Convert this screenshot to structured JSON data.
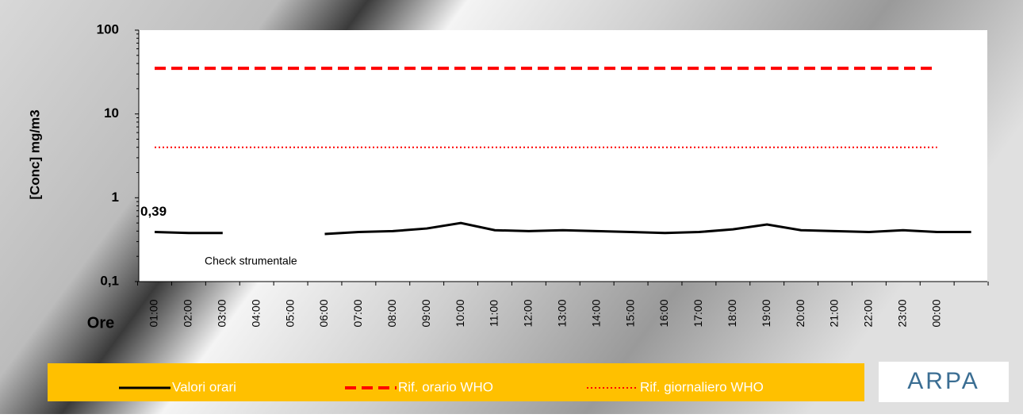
{
  "chart_data": {
    "type": "line",
    "y_label": "[Conc] mg/m3",
    "x_label": "Ore",
    "annotation": "Check strumentale",
    "logo": "ARPA",
    "log_scale": true,
    "categories": [
      "01:00",
      "02:00",
      "03:00",
      "04:00",
      "05:00",
      "06:00",
      "07:00",
      "08:00",
      "09:00",
      "10:00",
      "11:00",
      "12:00",
      "13:00",
      "14:00",
      "15:00",
      "16:00",
      "17:00",
      "18:00",
      "19:00",
      "20:00",
      "21:00",
      "22:00",
      "23:00",
      "00:00",
      null
    ],
    "series": [
      {
        "name": "Valori orari",
        "color": "#000000",
        "style": "solid",
        "values": [
          0.39,
          0.38,
          0.38,
          null,
          null,
          0.37,
          0.39,
          0.4,
          0.43,
          0.5,
          0.41,
          0.4,
          0.41,
          0.4,
          0.39,
          0.38,
          0.39,
          0.42,
          0.48,
          0.41,
          0.4,
          0.39,
          0.41,
          0.39,
          0.39
        ],
        "value_labels": [
          "0,39",
          null,
          null,
          null,
          null,
          null,
          null,
          null,
          null,
          null,
          null,
          null,
          null,
          null,
          null,
          null,
          null,
          null,
          null,
          null,
          null,
          null,
          null,
          null,
          null
        ]
      },
      {
        "name": "Rif. orario WHO",
        "color": "#ff0000",
        "style": "dashed",
        "values": [
          35,
          35,
          35,
          35,
          35,
          35,
          35,
          35,
          35,
          35,
          35,
          35,
          35,
          35,
          35,
          35,
          35,
          35,
          35,
          35,
          35,
          35,
          35,
          35,
          null
        ]
      },
      {
        "name": "Rif. giornaliero WHO",
        "color": "#ff0000",
        "style": "dotted",
        "values": [
          4,
          4,
          4,
          4,
          4,
          4,
          4,
          4,
          4,
          4,
          4,
          4,
          4,
          4,
          4,
          4,
          4,
          4,
          4,
          4,
          4,
          4,
          4,
          4,
          null
        ]
      }
    ],
    "ylim": [
      0.1,
      100
    ],
    "yticks": [
      {
        "value": 0.1,
        "label": "0,1"
      },
      1,
      10,
      100
    ]
  }
}
